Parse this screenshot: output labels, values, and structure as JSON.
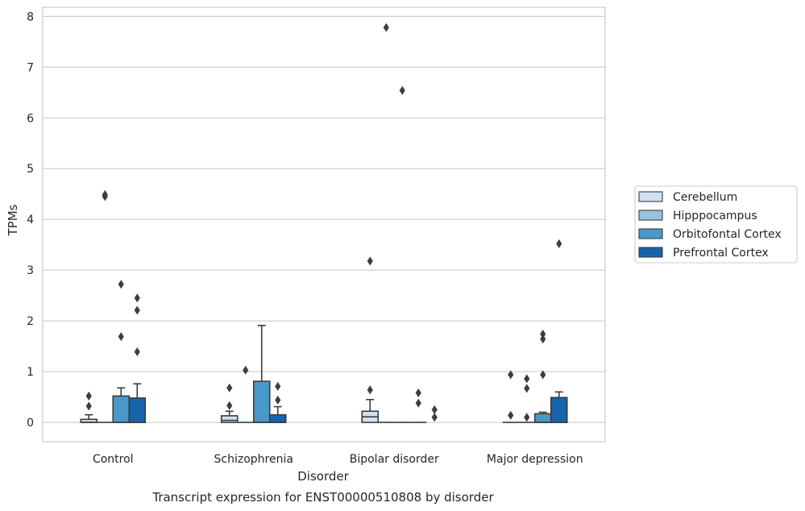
{
  "chart_data": {
    "type": "boxplot",
    "title": "",
    "caption": "Transcript expression for ENST00000510808 by disorder",
    "xlabel": "Disorder",
    "ylabel": "TPMs",
    "ylim": [
      -0.38,
      8.18
    ],
    "yticks": [
      0,
      1,
      2,
      3,
      4,
      5,
      6,
      7,
      8
    ],
    "grid": "horizontal",
    "legend_position": "right",
    "categories": [
      "Control",
      "Schizophrenia",
      "Bipolar disorder",
      "Major depression"
    ],
    "series": [
      {
        "name": "Cerebellum",
        "color": "#d0e1f2",
        "boxes": [
          {
            "q1": 0,
            "median": 0,
            "q3": 0.06,
            "whisker_low": 0,
            "whisker_high": 0.15,
            "outliers": [
              0.32,
              0.52
            ]
          },
          {
            "q1": 0,
            "median": 0.04,
            "q3": 0.13,
            "whisker_low": 0,
            "whisker_high": 0.22,
            "outliers": [
              0.33,
              0.68
            ]
          },
          {
            "q1": 0,
            "median": 0.11,
            "q3": 0.22,
            "whisker_low": 0,
            "whisker_high": 0.45,
            "outliers": [
              0.64,
              3.18
            ]
          },
          {
            "q1": 0,
            "median": 0,
            "q3": 0,
            "whisker_low": 0,
            "whisker_high": 0,
            "outliers": [
              0.14,
              0.94
            ]
          }
        ]
      },
      {
        "name": "Hipppocampus",
        "color": "#94c4df",
        "boxes": [
          {
            "q1": 0,
            "median": 0,
            "q3": 0,
            "whisker_low": 0,
            "whisker_high": 0,
            "outliers": [
              4.45,
              4.49
            ]
          },
          {
            "q1": 0,
            "median": 0,
            "q3": 0,
            "whisker_low": 0,
            "whisker_high": 0,
            "outliers": [
              1.03
            ]
          },
          {
            "q1": 0,
            "median": 0,
            "q3": 0,
            "whisker_low": 0,
            "whisker_high": 0,
            "outliers": [
              7.78
            ]
          },
          {
            "q1": 0,
            "median": 0,
            "q3": 0,
            "whisker_low": 0,
            "whisker_high": 0,
            "outliers": [
              0.1,
              0.67,
              0.86
            ]
          }
        ]
      },
      {
        "name": "Orbitofontal Cortex",
        "color": "#4a98c9",
        "boxes": [
          {
            "q1": 0,
            "median": 0,
            "q3": 0.52,
            "whisker_low": 0,
            "whisker_high": 0.68,
            "outliers": [
              1.69,
              2.72
            ]
          },
          {
            "q1": 0,
            "median": 0,
            "q3": 0.81,
            "whisker_low": 0,
            "whisker_high": 1.91,
            "outliers": []
          },
          {
            "q1": 0,
            "median": 0,
            "q3": 0,
            "whisker_low": 0,
            "whisker_high": 0,
            "outliers": [
              6.54
            ]
          },
          {
            "q1": 0,
            "median": 0,
            "q3": 0.17,
            "whisker_low": 0,
            "whisker_high": 0.2,
            "outliers": [
              0.94,
              1.64,
              1.74
            ]
          }
        ]
      },
      {
        "name": "Prefrontal Cortex",
        "color": "#1764ab",
        "boxes": [
          {
            "q1": 0,
            "median": 0,
            "q3": 0.48,
            "whisker_low": 0,
            "whisker_high": 0.76,
            "outliers": [
              1.39,
              2.21,
              2.45
            ]
          },
          {
            "q1": 0,
            "median": 0,
            "q3": 0.15,
            "whisker_low": 0,
            "whisker_high": 0.31,
            "outliers": [
              0.44,
              0.71
            ]
          },
          {
            "q1": 0,
            "median": 0,
            "q3": 0,
            "whisker_low": 0,
            "whisker_high": 0,
            "outliers": [
              0.38,
              0.58
            ]
          },
          {
            "q1": 0,
            "median": 0,
            "q3": 0.49,
            "whisker_low": 0,
            "whisker_high": 0.6,
            "outliers": [
              3.52
            ]
          }
        ]
      }
    ],
    "trailing_outliers": [
      {
        "category_index": 2,
        "value": 0.1
      },
      {
        "category_index": 2,
        "value": 0.25
      }
    ]
  }
}
